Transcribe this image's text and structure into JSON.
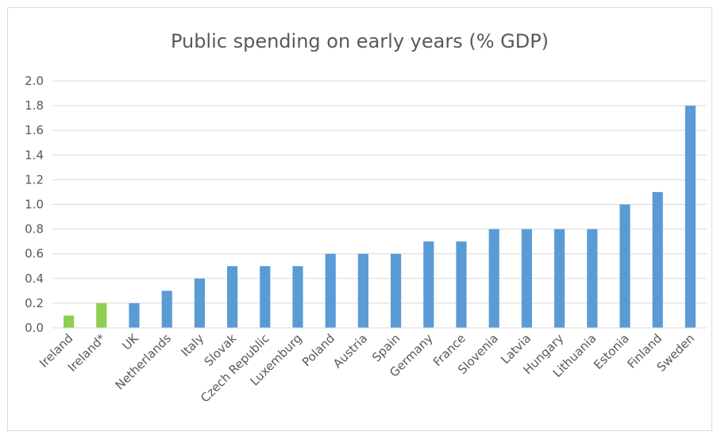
{
  "chart_data": {
    "type": "bar",
    "title": "Public spending on early years (% GDP)",
    "xlabel": "",
    "ylabel": "",
    "ylim": [
      0,
      2.0
    ],
    "yticks": [
      "0.0",
      "0.2",
      "0.4",
      "0.6",
      "0.8",
      "1.0",
      "1.2",
      "1.4",
      "1.6",
      "1.8",
      "2.0"
    ],
    "grid": true,
    "legend": "none",
    "categories": [
      "Ireland",
      "Ireland*",
      "UK",
      "Netherlands",
      "Italy",
      "Slovak",
      "Czech Republic",
      "Luxemburg",
      "Poland",
      "Austria",
      "Spain",
      "Germany",
      "France",
      "Slovenia",
      "Latvia",
      "Hungary",
      "Lithuania",
      "Estonia",
      "Finland",
      "Sweden"
    ],
    "values": [
      0.1,
      0.2,
      0.2,
      0.3,
      0.4,
      0.5,
      0.5,
      0.5,
      0.6,
      0.6,
      0.6,
      0.7,
      0.7,
      0.8,
      0.8,
      0.8,
      0.8,
      1.0,
      1.1,
      1.8
    ],
    "bar_colors": [
      "#8fce4f",
      "#8fce4f",
      "#5b9bd5",
      "#5b9bd5",
      "#5b9bd5",
      "#5b9bd5",
      "#5b9bd5",
      "#5b9bd5",
      "#5b9bd5",
      "#5b9bd5",
      "#5b9bd5",
      "#5b9bd5",
      "#5b9bd5",
      "#5b9bd5",
      "#5b9bd5",
      "#5b9bd5",
      "#5b9bd5",
      "#5b9bd5",
      "#5b9bd5",
      "#5b9bd5"
    ],
    "gridline_color": "#d9d9d9"
  }
}
